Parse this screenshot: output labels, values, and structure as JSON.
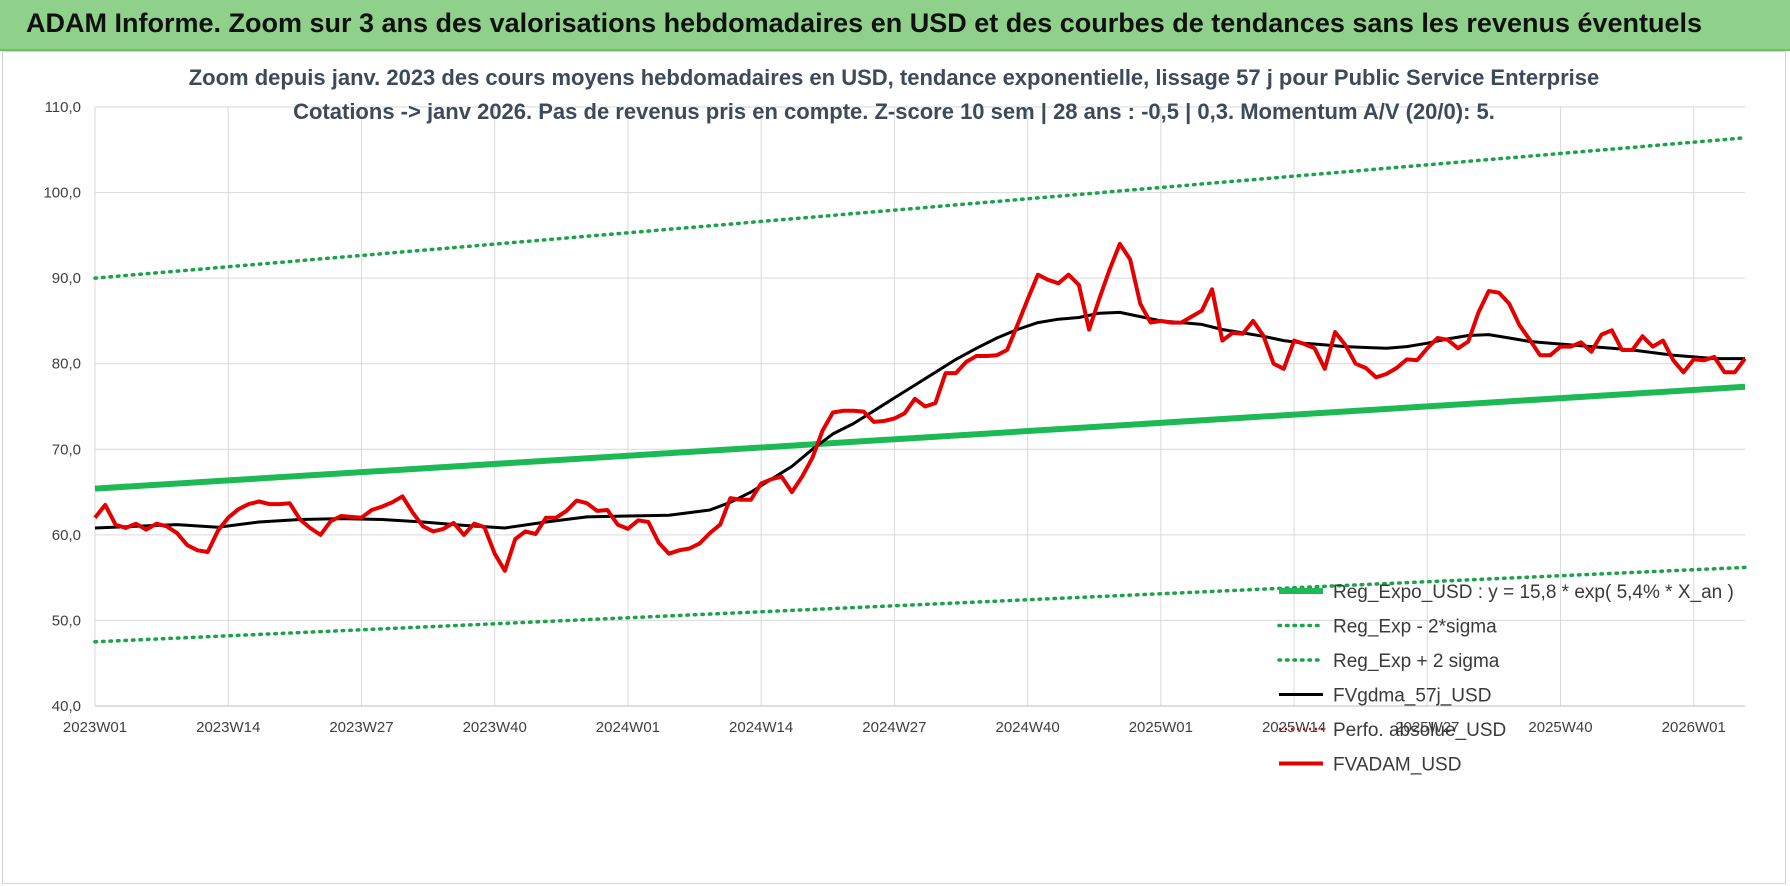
{
  "banner": {
    "title": "ADAM Informe. Zoom sur 3 ans des valorisations hebdomadaires en USD et des courbes de tendances sans les revenus éventuels"
  },
  "chart_data": {
    "type": "line",
    "title_lines": [
      "Zoom depuis janv. 2023 des cours moyens hebdomadaires en USD, tendance exponentielle, lissage 57 j pour Public Service  Enterprise",
      "Cotations -> janv 2026. Pas de revenus pris en compte. Z-score 10 sem  | 28 ans : -0,5 | 0,3. Momentum A/V (20/0): 5."
    ],
    "ylim": [
      40,
      110
    ],
    "y_ticks": [
      "40,0",
      "50,0",
      "60,0",
      "70,0",
      "80,0",
      "90,0",
      "100,0",
      "110,0"
    ],
    "x_ticks": [
      {
        "label": "2023W01",
        "week": 0
      },
      {
        "label": "2023W14",
        "week": 13
      },
      {
        "label": "2023W27",
        "week": 26
      },
      {
        "label": "2023W40",
        "week": 39
      },
      {
        "label": "2024W01",
        "week": 52
      },
      {
        "label": "2024W14",
        "week": 65
      },
      {
        "label": "2024W27",
        "week": 78
      },
      {
        "label": "2024W40",
        "week": 91
      },
      {
        "label": "2025W01",
        "week": 104
      },
      {
        "label": "2025W14",
        "week": 117
      },
      {
        "label": "2025W27",
        "week": 130
      },
      {
        "label": "2025W40",
        "week": 143
      },
      {
        "label": "2026W01",
        "week": 156
      }
    ],
    "x_range": [
      0,
      161
    ],
    "grid": true,
    "legend_position": "bottom-right",
    "colors": {
      "reg_expo": "#1db954",
      "reg_sigma": "#1aa34a",
      "fvgdma": "#000000",
      "perfo": "#cc0000",
      "fvadam": "#e50000",
      "grid": "#d9d9d9",
      "banner": "#8fd18a"
    },
    "series": [
      {
        "name": "Reg_Expo_USD : y = 15,8 * exp( 5,4% *  X_an )",
        "style": "solid-thick",
        "line": [
          [
            0,
            65.4
          ],
          [
            161,
            77.3
          ]
        ]
      },
      {
        "name": "Reg_Exp - 2*sigma",
        "style": "dotted",
        "line": [
          [
            0,
            47.5
          ],
          [
            161,
            56.2
          ]
        ]
      },
      {
        "name": "Reg_Exp + 2 sigma",
        "style": "dotted",
        "line": [
          [
            0,
            90.0
          ],
          [
            161,
            106.4
          ]
        ]
      },
      {
        "name": "FVgdma_57j_USD",
        "style": "solid-black",
        "points": [
          [
            0,
            60.8
          ],
          [
            4,
            61.0
          ],
          [
            8,
            61.2
          ],
          [
            12,
            60.9
          ],
          [
            16,
            61.5
          ],
          [
            20,
            61.8
          ],
          [
            24,
            61.9
          ],
          [
            28,
            61.8
          ],
          [
            32,
            61.5
          ],
          [
            36,
            61.1
          ],
          [
            40,
            60.8
          ],
          [
            44,
            61.5
          ],
          [
            48,
            62.1
          ],
          [
            52,
            62.2
          ],
          [
            56,
            62.3
          ],
          [
            60,
            62.9
          ],
          [
            62,
            63.8
          ],
          [
            64,
            65.0
          ],
          [
            66,
            66.5
          ],
          [
            68,
            68.0
          ],
          [
            70,
            70.0
          ],
          [
            72,
            71.8
          ],
          [
            74,
            73.0
          ],
          [
            76,
            74.5
          ],
          [
            78,
            76.0
          ],
          [
            80,
            77.5
          ],
          [
            82,
            79.0
          ],
          [
            84,
            80.5
          ],
          [
            86,
            81.8
          ],
          [
            88,
            83.0
          ],
          [
            90,
            84.0
          ],
          [
            92,
            84.8
          ],
          [
            94,
            85.2
          ],
          [
            96,
            85.4
          ],
          [
            98,
            85.9
          ],
          [
            100,
            86.0
          ],
          [
            102,
            85.5
          ],
          [
            104,
            85.0
          ],
          [
            106,
            84.8
          ],
          [
            108,
            84.6
          ],
          [
            110,
            84.0
          ],
          [
            112,
            83.6
          ],
          [
            114,
            83.2
          ],
          [
            116,
            82.7
          ],
          [
            118,
            82.4
          ],
          [
            120,
            82.2
          ],
          [
            122,
            82.0
          ],
          [
            124,
            81.9
          ],
          [
            126,
            81.8
          ],
          [
            128,
            82.0
          ],
          [
            130,
            82.4
          ],
          [
            132,
            82.9
          ],
          [
            134,
            83.3
          ],
          [
            136,
            83.4
          ],
          [
            138,
            83.0
          ],
          [
            140,
            82.6
          ],
          [
            142,
            82.4
          ],
          [
            144,
            82.2
          ],
          [
            146,
            82.0
          ],
          [
            148,
            81.8
          ],
          [
            150,
            81.6
          ],
          [
            152,
            81.3
          ],
          [
            154,
            81.0
          ],
          [
            156,
            80.8
          ],
          [
            158,
            80.6
          ],
          [
            161,
            80.6
          ]
        ]
      },
      {
        "name": "Perfo. absolue_USD",
        "style": "dotted-red",
        "points": []
      },
      {
        "name": "FVADAM_USD",
        "style": "solid-red",
        "points": [
          [
            0,
            62.0
          ],
          [
            1,
            63.5
          ],
          [
            2,
            61.2
          ],
          [
            3,
            60.8
          ],
          [
            4,
            61.3
          ],
          [
            5,
            60.6
          ],
          [
            6,
            61.3
          ],
          [
            7,
            61.0
          ],
          [
            8,
            60.2
          ],
          [
            9,
            58.8
          ],
          [
            10,
            58.2
          ],
          [
            11,
            58.0
          ],
          [
            12,
            60.5
          ],
          [
            13,
            62.0
          ],
          [
            14,
            63.0
          ],
          [
            15,
            63.6
          ],
          [
            16,
            63.9
          ],
          [
            17,
            63.6
          ],
          [
            18,
            63.6
          ],
          [
            19,
            63.7
          ],
          [
            20,
            61.8
          ],
          [
            21,
            60.8
          ],
          [
            22,
            60.0
          ],
          [
            23,
            61.6
          ],
          [
            24,
            62.2
          ],
          [
            25,
            62.1
          ],
          [
            26,
            62.0
          ],
          [
            27,
            62.9
          ],
          [
            28,
            63.3
          ],
          [
            29,
            63.8
          ],
          [
            30,
            64.5
          ],
          [
            31,
            62.6
          ],
          [
            32,
            61.0
          ],
          [
            33,
            60.4
          ],
          [
            34,
            60.7
          ],
          [
            35,
            61.4
          ],
          [
            36,
            60.0
          ],
          [
            37,
            61.3
          ],
          [
            38,
            60.9
          ],
          [
            39,
            57.8
          ],
          [
            40,
            55.8
          ],
          [
            41,
            59.5
          ],
          [
            42,
            60.4
          ],
          [
            43,
            60.1
          ],
          [
            44,
            62.0
          ],
          [
            45,
            62.0
          ],
          [
            46,
            62.8
          ],
          [
            47,
            64.0
          ],
          [
            48,
            63.7
          ],
          [
            49,
            62.8
          ],
          [
            50,
            62.9
          ],
          [
            51,
            61.2
          ],
          [
            52,
            60.7
          ],
          [
            53,
            61.7
          ],
          [
            54,
            61.5
          ],
          [
            55,
            59.1
          ],
          [
            56,
            57.8
          ],
          [
            57,
            58.2
          ],
          [
            58,
            58.4
          ],
          [
            59,
            59.0
          ],
          [
            60,
            60.2
          ],
          [
            61,
            61.2
          ],
          [
            62,
            64.3
          ],
          [
            63,
            64.1
          ],
          [
            64,
            64.1
          ],
          [
            65,
            66.0
          ],
          [
            66,
            66.5
          ],
          [
            67,
            66.8
          ],
          [
            68,
            65.0
          ],
          [
            69,
            66.8
          ],
          [
            70,
            69.0
          ],
          [
            71,
            72.2
          ],
          [
            72,
            74.3
          ],
          [
            73,
            74.5
          ],
          [
            74,
            74.5
          ],
          [
            75,
            74.4
          ],
          [
            76,
            73.2
          ],
          [
            77,
            73.3
          ],
          [
            78,
            73.6
          ],
          [
            79,
            74.2
          ],
          [
            80,
            75.9
          ],
          [
            81,
            75.0
          ],
          [
            82,
            75.4
          ],
          [
            83,
            78.9
          ],
          [
            84,
            78.9
          ],
          [
            85,
            80.2
          ],
          [
            86,
            80.9
          ],
          [
            87,
            80.9
          ],
          [
            88,
            81.0
          ],
          [
            89,
            81.6
          ],
          [
            90,
            84.5
          ],
          [
            91,
            87.5
          ],
          [
            92,
            90.4
          ],
          [
            93,
            89.8
          ],
          [
            94,
            89.4
          ],
          [
            95,
            90.4
          ],
          [
            96,
            89.2
          ],
          [
            97,
            84.0
          ],
          [
            98,
            87.6
          ],
          [
            99,
            91.0
          ],
          [
            100,
            94.0
          ],
          [
            101,
            92.2
          ],
          [
            102,
            87.0
          ],
          [
            103,
            84.8
          ],
          [
            104,
            85.0
          ],
          [
            105,
            84.8
          ],
          [
            106,
            84.8
          ],
          [
            107,
            85.5
          ],
          [
            108,
            86.2
          ],
          [
            109,
            88.7
          ],
          [
            110,
            82.7
          ],
          [
            111,
            83.6
          ],
          [
            112,
            83.5
          ],
          [
            113,
            85.0
          ],
          [
            114,
            83.3
          ],
          [
            115,
            80.0
          ],
          [
            116,
            79.4
          ],
          [
            117,
            82.7
          ],
          [
            118,
            82.3
          ],
          [
            119,
            81.8
          ],
          [
            120,
            79.4
          ],
          [
            121,
            83.7
          ],
          [
            122,
            82.2
          ],
          [
            123,
            80.0
          ],
          [
            124,
            79.5
          ],
          [
            125,
            78.4
          ],
          [
            126,
            78.8
          ],
          [
            127,
            79.5
          ],
          [
            128,
            80.5
          ],
          [
            129,
            80.4
          ],
          [
            130,
            81.8
          ],
          [
            131,
            83.0
          ],
          [
            132,
            82.8
          ],
          [
            133,
            81.8
          ],
          [
            134,
            82.6
          ],
          [
            135,
            86.0
          ],
          [
            136,
            88.5
          ],
          [
            137,
            88.3
          ],
          [
            138,
            87.0
          ],
          [
            139,
            84.5
          ],
          [
            140,
            82.8
          ],
          [
            141,
            81.0
          ],
          [
            142,
            81.0
          ],
          [
            143,
            82.0
          ],
          [
            144,
            82.0
          ],
          [
            145,
            82.5
          ],
          [
            146,
            81.4
          ],
          [
            147,
            83.4
          ],
          [
            148,
            83.9
          ],
          [
            149,
            81.6
          ],
          [
            150,
            81.6
          ],
          [
            151,
            83.2
          ],
          [
            152,
            82.0
          ],
          [
            153,
            82.7
          ],
          [
            154,
            80.4
          ],
          [
            155,
            79.0
          ],
          [
            156,
            80.5
          ],
          [
            157,
            80.4
          ],
          [
            158,
            80.8
          ],
          [
            159,
            79.0
          ],
          [
            160,
            79.0
          ],
          [
            161,
            80.6
          ]
        ]
      }
    ]
  }
}
